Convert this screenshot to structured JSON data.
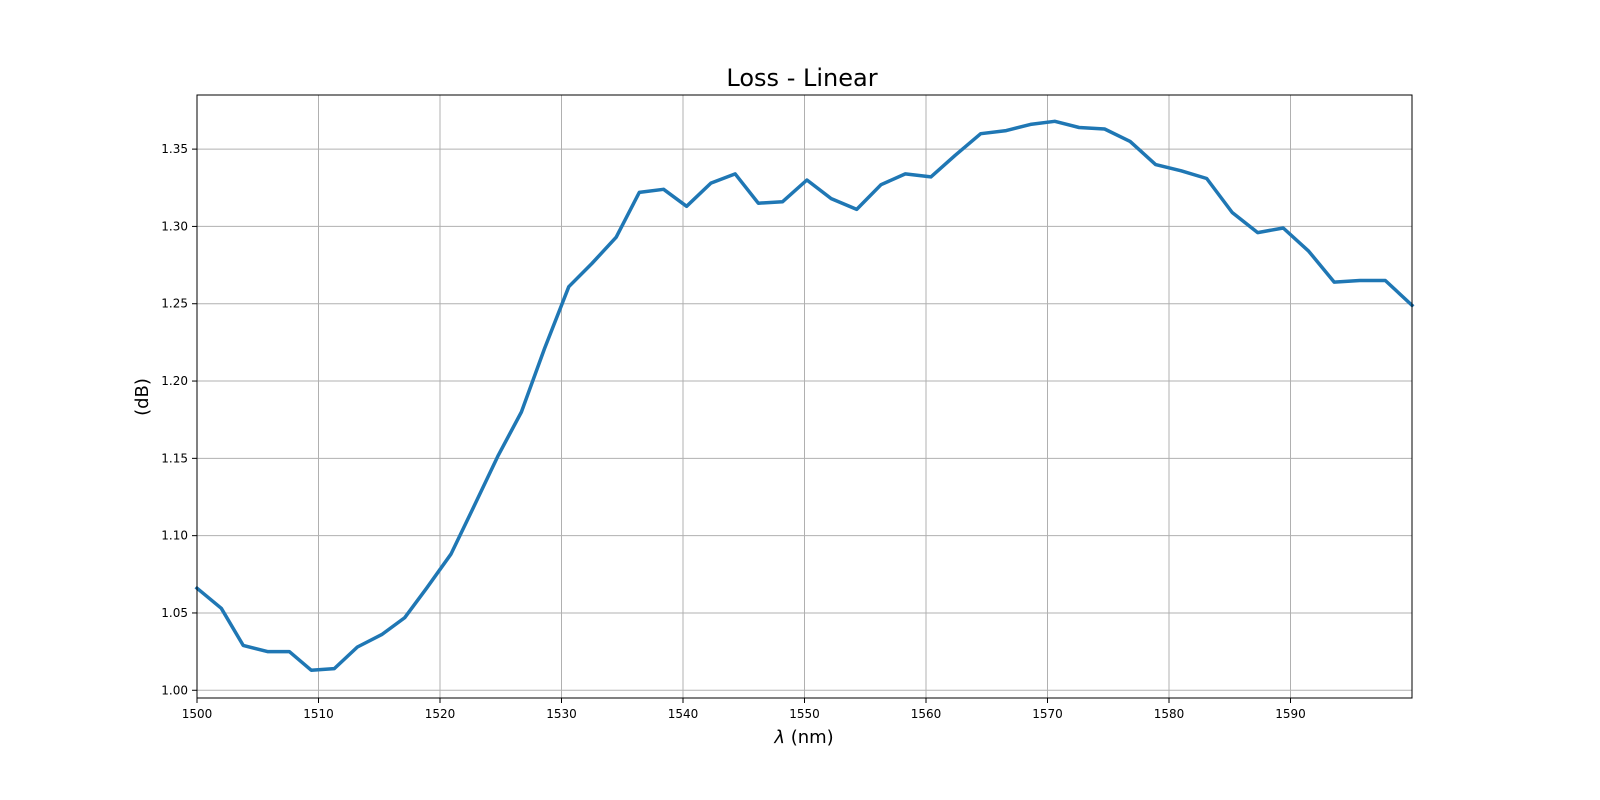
{
  "chart_data": {
    "type": "line",
    "title": "Loss - Linear",
    "xlabel_prefix": "λ",
    "xlabel_suffix": " (nm)",
    "ylabel": "(dB)",
    "xlim": [
      1500,
      1600
    ],
    "ylim": [
      0.995,
      1.385
    ],
    "x_ticks": [
      1500,
      1510,
      1520,
      1530,
      1540,
      1550,
      1560,
      1570,
      1580,
      1590
    ],
    "y_ticks": [
      1.0,
      1.05,
      1.1,
      1.15,
      1.2,
      1.25,
      1.3,
      1.35
    ],
    "x_tick_labels": [
      "1500",
      "1510",
      "1520",
      "1530",
      "1540",
      "1550",
      "1560",
      "1570",
      "1580",
      "1590"
    ],
    "y_tick_labels": [
      "1.00",
      "1.05",
      "1.10",
      "1.15",
      "1.20",
      "1.25",
      "1.30",
      "1.35"
    ],
    "grid": true,
    "color": "#1f77b4",
    "series": [
      {
        "x": [
          1500,
          1502,
          1503.8,
          1505.8,
          1507.6,
          1509.4,
          1511.3,
          1513.2,
          1515.2,
          1517.1,
          1518.9,
          1520.9,
          1522.8,
          1524.8,
          1526.7,
          1528.6,
          1530.6,
          1532.5,
          1534.5,
          1536.4,
          1538.4,
          1540.3,
          1542.3,
          1544.3,
          1546.2,
          1548.2,
          1550.2,
          1552.2,
          1554.3,
          1556.3,
          1558.3,
          1560.4,
          1562.4,
          1564.5,
          1566.6,
          1568.6,
          1570.6,
          1572.6,
          1574.7,
          1576.8,
          1578.9,
          1581,
          1583.1,
          1585.2,
          1587.3,
          1589.4,
          1591.5,
          1593.6,
          1595.7,
          1597.8,
          1600
        ],
        "values": [
          1.066,
          1.053,
          1.029,
          1.025,
          1.025,
          1.013,
          1.014,
          1.028,
          1.036,
          1.047,
          1.066,
          1.088,
          1.119,
          1.152,
          1.18,
          1.221,
          1.261,
          1.276,
          1.293,
          1.322,
          1.324,
          1.313,
          1.328,
          1.334,
          1.315,
          1.316,
          1.33,
          1.318,
          1.311,
          1.327,
          1.334,
          1.332,
          1.346,
          1.36,
          1.362,
          1.366,
          1.368,
          1.364,
          1.363,
          1.355,
          1.34,
          1.336,
          1.331,
          1.309,
          1.296,
          1.299,
          1.284,
          1.264,
          1.265,
          1.265,
          1.249
        ]
      }
    ]
  }
}
